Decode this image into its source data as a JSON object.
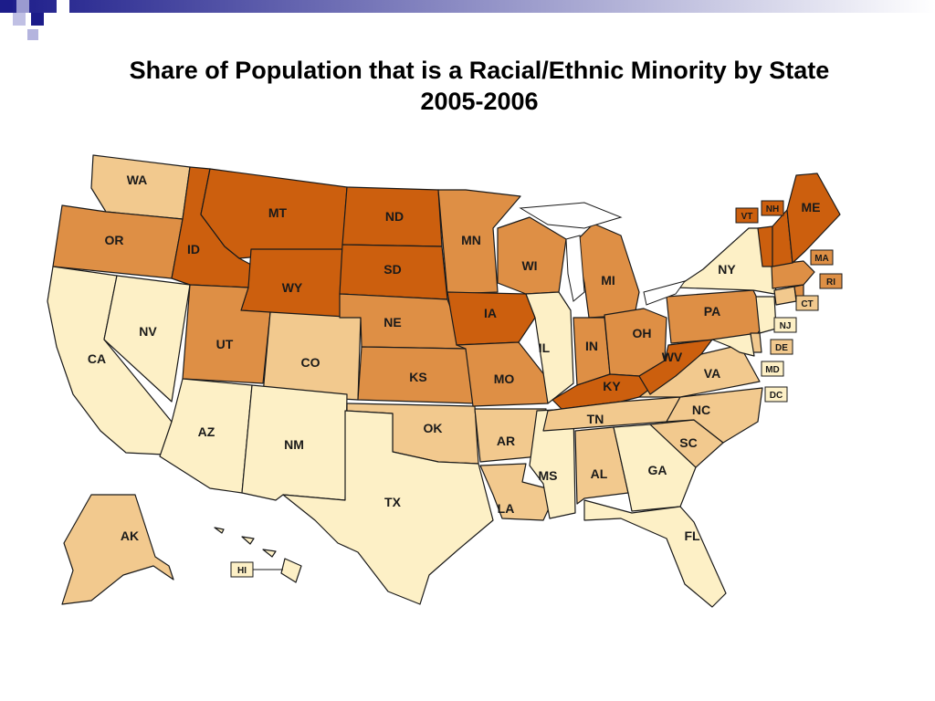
{
  "title": {
    "line1": "Share of Population that is a Racial/Ethnic Minority by State",
    "line2": "2005-2006"
  },
  "legend_colors": {
    "lightest": "#fdf0c6",
    "light": "#f2c98e",
    "medium": "#de8f45",
    "darkest": "#cc5f0e"
  },
  "slide_accent": "#1c1c8a",
  "states": [
    {
      "abbr": "WA",
      "shade": "light"
    },
    {
      "abbr": "OR",
      "shade": "medium"
    },
    {
      "abbr": "CA",
      "shade": "lightest"
    },
    {
      "abbr": "NV",
      "shade": "lightest"
    },
    {
      "abbr": "ID",
      "shade": "darkest"
    },
    {
      "abbr": "MT",
      "shade": "darkest"
    },
    {
      "abbr": "WY",
      "shade": "darkest"
    },
    {
      "abbr": "UT",
      "shade": "medium"
    },
    {
      "abbr": "AZ",
      "shade": "lightest"
    },
    {
      "abbr": "CO",
      "shade": "light"
    },
    {
      "abbr": "NM",
      "shade": "lightest"
    },
    {
      "abbr": "ND",
      "shade": "darkest"
    },
    {
      "abbr": "SD",
      "shade": "darkest"
    },
    {
      "abbr": "NE",
      "shade": "medium"
    },
    {
      "abbr": "KS",
      "shade": "medium"
    },
    {
      "abbr": "OK",
      "shade": "light"
    },
    {
      "abbr": "TX",
      "shade": "lightest"
    },
    {
      "abbr": "MN",
      "shade": "medium"
    },
    {
      "abbr": "IA",
      "shade": "darkest"
    },
    {
      "abbr": "MO",
      "shade": "medium"
    },
    {
      "abbr": "AR",
      "shade": "light"
    },
    {
      "abbr": "LA",
      "shade": "light"
    },
    {
      "abbr": "WI",
      "shade": "medium"
    },
    {
      "abbr": "IL",
      "shade": "lightest"
    },
    {
      "abbr": "MS",
      "shade": "lightest"
    },
    {
      "abbr": "MI",
      "shade": "medium"
    },
    {
      "abbr": "IN",
      "shade": "medium"
    },
    {
      "abbr": "OH",
      "shade": "medium"
    },
    {
      "abbr": "KY",
      "shade": "darkest"
    },
    {
      "abbr": "TN",
      "shade": "light"
    },
    {
      "abbr": "AL",
      "shade": "light"
    },
    {
      "abbr": "GA",
      "shade": "lightest"
    },
    {
      "abbr": "FL",
      "shade": "lightest"
    },
    {
      "abbr": "SC",
      "shade": "light"
    },
    {
      "abbr": "NC",
      "shade": "light"
    },
    {
      "abbr": "VA",
      "shade": "light"
    },
    {
      "abbr": "WV",
      "shade": "darkest"
    },
    {
      "abbr": "PA",
      "shade": "medium"
    },
    {
      "abbr": "NY",
      "shade": "lightest"
    },
    {
      "abbr": "ME",
      "shade": "darkest"
    },
    {
      "abbr": "VT",
      "shade": "darkest"
    },
    {
      "abbr": "NH",
      "shade": "darkest"
    },
    {
      "abbr": "MA",
      "shade": "medium"
    },
    {
      "abbr": "RI",
      "shade": "medium"
    },
    {
      "abbr": "CT",
      "shade": "light"
    },
    {
      "abbr": "NJ",
      "shade": "lightest"
    },
    {
      "abbr": "DE",
      "shade": "light"
    },
    {
      "abbr": "MD",
      "shade": "lightest"
    },
    {
      "abbr": "DC",
      "shade": "lightest"
    },
    {
      "abbr": "AK",
      "shade": "light"
    },
    {
      "abbr": "HI",
      "shade": "lightest"
    }
  ]
}
